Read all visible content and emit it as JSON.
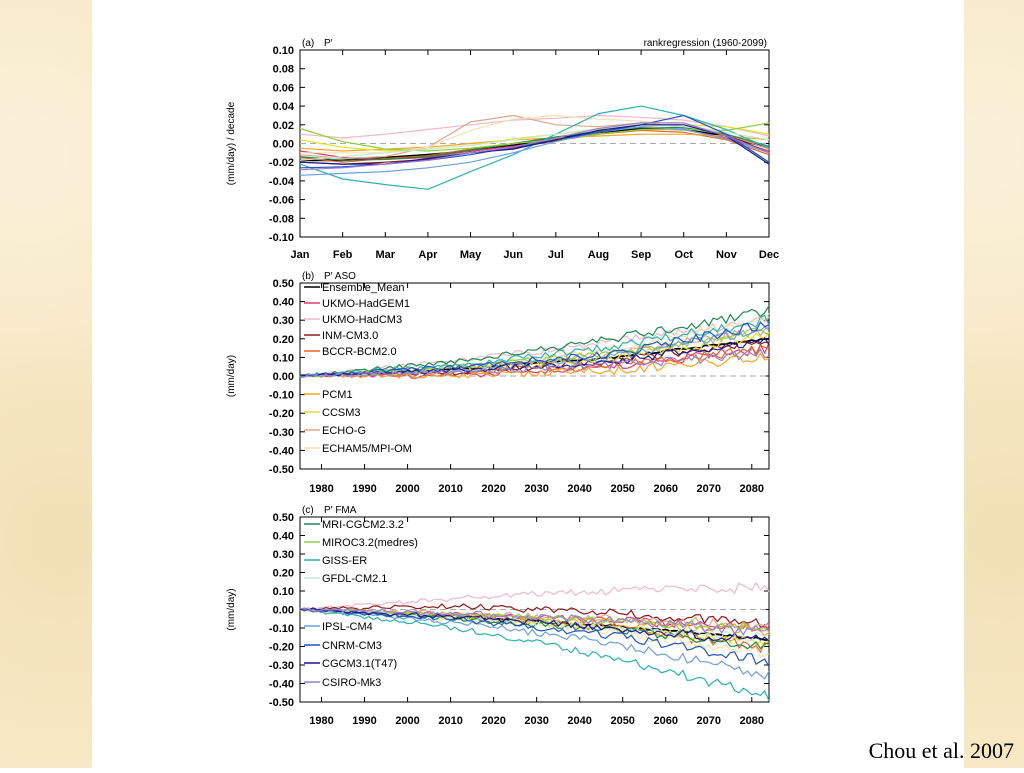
{
  "slide": {
    "credit": "Chou et al. 2007",
    "background_color": "#f8e9c6"
  },
  "chart_data": [
    {
      "type": "line",
      "panel_label": "(a)",
      "title": "P′",
      "title_right": "rankregression  (1960-2099)",
      "ylabel": "(mm/day) / decade",
      "categories": [
        "Jan",
        "Feb",
        "Mar",
        "Apr",
        "May",
        "Jun",
        "Jul",
        "Aug",
        "Sep",
        "Oct",
        "Nov",
        "Dec"
      ],
      "ylim": [
        -0.1,
        0.1
      ],
      "yticks": [
        "-0.10",
        "-0.08",
        "-0.06",
        "-0.04",
        "-0.02",
        "0.00",
        "0.02",
        "0.04",
        "0.06",
        "0.08",
        "0.10"
      ],
      "zero_line": "dashed",
      "series": [
        {
          "color": "#000000",
          "values": [
            -0.018,
            -0.018,
            -0.015,
            -0.012,
            -0.008,
            -0.002,
            0.006,
            0.012,
            0.016,
            0.015,
            0.008,
            -0.005
          ]
        },
        {
          "color": "#e33c74",
          "values": [
            -0.008,
            -0.015,
            -0.017,
            -0.015,
            -0.008,
            -0.003,
            0.004,
            0.012,
            0.018,
            0.015,
            0.006,
            -0.008
          ]
        },
        {
          "color": "#f2b8c6",
          "values": [
            0.01,
            0.006,
            0.01,
            0.015,
            0.02,
            0.025,
            0.027,
            0.03,
            0.028,
            0.025,
            0.018,
            0.008
          ]
        },
        {
          "color": "#8b1a1a",
          "values": [
            -0.02,
            -0.022,
            -0.02,
            -0.017,
            -0.01,
            -0.005,
            0.003,
            0.01,
            0.015,
            0.018,
            0.01,
            -0.01
          ]
        },
        {
          "color": "#e8641e",
          "values": [
            -0.015,
            -0.02,
            -0.016,
            -0.013,
            -0.006,
            0.0,
            0.005,
            0.01,
            0.014,
            0.012,
            0.004,
            -0.012
          ]
        },
        {
          "color": "#f5a623",
          "values": [
            -0.005,
            -0.008,
            -0.006,
            -0.004,
            0.0,
            0.004,
            0.006,
            0.008,
            0.01,
            0.01,
            0.008,
            0.004
          ]
        },
        {
          "color": "#e8e020",
          "values": [
            0.004,
            -0.004,
            -0.008,
            -0.006,
            -0.002,
            0.005,
            0.01,
            0.015,
            0.018,
            0.02,
            0.018,
            0.01
          ]
        },
        {
          "color": "#d9a98a",
          "values": [
            -0.012,
            -0.016,
            -0.014,
            -0.004,
            0.023,
            0.03,
            0.02,
            0.018,
            0.022,
            0.018,
            0.01,
            -0.006
          ]
        },
        {
          "color": "#f3e3b0",
          "values": [
            -0.01,
            -0.01,
            -0.01,
            -0.004,
            0.014,
            0.026,
            0.03,
            0.026,
            0.024,
            0.02,
            0.012,
            0.004
          ]
        },
        {
          "color": "#1e8a50",
          "values": [
            -0.014,
            -0.018,
            -0.017,
            -0.014,
            -0.007,
            0.0,
            0.007,
            0.013,
            0.017,
            0.017,
            0.01,
            -0.003
          ]
        },
        {
          "color": "#8fcf3a",
          "values": [
            0.016,
            0.002,
            -0.006,
            -0.008,
            -0.005,
            0.0,
            0.004,
            0.01,
            0.015,
            0.015,
            0.014,
            0.022
          ]
        },
        {
          "color": "#2ab3b0",
          "values": [
            -0.022,
            -0.038,
            -0.044,
            -0.049,
            -0.03,
            -0.012,
            0.01,
            0.032,
            0.04,
            0.03,
            0.015,
            -0.005
          ]
        },
        {
          "color": "#c9e8d8",
          "values": [
            -0.018,
            -0.014,
            -0.01,
            -0.006,
            -0.002,
            0.004,
            0.01,
            0.016,
            0.02,
            0.018,
            0.012,
            0.004
          ]
        },
        {
          "color": "#6aa0e0",
          "values": [
            -0.034,
            -0.032,
            -0.03,
            -0.026,
            -0.02,
            -0.01,
            0.002,
            0.012,
            0.018,
            0.015,
            0.005,
            -0.01
          ]
        },
        {
          "color": "#2255c4",
          "values": [
            -0.026,
            -0.025,
            -0.022,
            -0.018,
            -0.012,
            -0.004,
            0.004,
            0.012,
            0.02,
            0.03,
            0.01,
            -0.02
          ]
        },
        {
          "color": "#1a1a90",
          "values": [
            -0.02,
            -0.022,
            -0.022,
            -0.016,
            -0.01,
            -0.006,
            0.004,
            0.014,
            0.02,
            0.02,
            0.008,
            -0.022
          ]
        },
        {
          "color": "#9a7fd0",
          "values": [
            -0.028,
            -0.026,
            -0.022,
            -0.018,
            -0.01,
            -0.004,
            0.006,
            0.016,
            0.022,
            0.022,
            0.008,
            -0.01
          ]
        }
      ]
    },
    {
      "type": "line",
      "panel_label": "(b)",
      "title": "P′  ASO",
      "ylabel": "(mm/day)",
      "x_start": 1975,
      "x_end": 2084,
      "xticks": [
        "1980",
        "1990",
        "2000",
        "2010",
        "2020",
        "2030",
        "2040",
        "2050",
        "2060",
        "2070",
        "2080"
      ],
      "ylim": [
        -0.5,
        0.5
      ],
      "yticks": [
        "-0.50",
        "-0.40",
        "-0.30",
        "-0.20",
        "-0.10",
        "0.00",
        "0.10",
        "0.20",
        "0.30",
        "0.40",
        "0.50"
      ],
      "zero_line": "dashed",
      "legend": [
        "Ensemble_Mean",
        "UKMO-HadGEM1",
        "UKMO-HadCM3",
        "INM-CM3.0",
        "BCCR-BCM2.0",
        "PCM1",
        "CCSM3",
        "ECHO-G",
        "ECHAM5/MPI-OM"
      ],
      "series": [
        {
          "name": "Ensemble_Mean",
          "color": "#000000",
          "values": [
            0.0,
            0.04,
            0.1,
            0.2
          ]
        },
        {
          "name": "UKMO-HadGEM1",
          "color": "#e33c74",
          "values": [
            0.0,
            0.0,
            0.05,
            0.15
          ]
        },
        {
          "name": "UKMO-HadCM3",
          "color": "#f2b8c6",
          "values": [
            0.0,
            0.08,
            0.18,
            0.3
          ]
        },
        {
          "name": "INM-CM3.0",
          "color": "#8b1a1a",
          "values": [
            0.0,
            0.02,
            0.08,
            0.2
          ]
        },
        {
          "name": "BCCR-BCM2.0",
          "color": "#e8641e",
          "values": [
            0.0,
            0.02,
            0.06,
            0.14
          ]
        },
        {
          "name": "PCM1",
          "color": "#f5a623",
          "values": [
            0.0,
            0.0,
            0.03,
            0.1
          ]
        },
        {
          "name": "CCSM3",
          "color": "#e8e020",
          "values": [
            0.0,
            0.03,
            0.1,
            0.22
          ]
        },
        {
          "name": "ECHO-G",
          "color": "#d9a98a",
          "values": [
            0.0,
            0.04,
            0.12,
            0.25
          ]
        },
        {
          "name": "ECHAM5/MPI-OM",
          "color": "#f3e3b0",
          "values": [
            0.0,
            0.05,
            0.14,
            0.32
          ]
        },
        {
          "color": "#1e8a50",
          "values": [
            0.0,
            0.08,
            0.2,
            0.35
          ]
        },
        {
          "color": "#8fcf3a",
          "values": [
            0.0,
            0.05,
            0.12,
            0.25
          ]
        },
        {
          "color": "#2ab3b0",
          "values": [
            0.0,
            0.06,
            0.16,
            0.3
          ]
        },
        {
          "color": "#6aa0e0",
          "values": [
            0.0,
            0.03,
            0.1,
            0.26
          ]
        },
        {
          "color": "#2255c4",
          "values": [
            0.0,
            0.05,
            0.12,
            0.28
          ]
        },
        {
          "color": "#1a1a90",
          "values": [
            0.0,
            0.03,
            0.08,
            0.18
          ]
        },
        {
          "color": "#9a7fd0",
          "values": [
            0.0,
            0.02,
            0.06,
            0.12
          ]
        }
      ]
    },
    {
      "type": "line",
      "panel_label": "(c)",
      "title": "P′  FMA",
      "ylabel": "(mm/day)",
      "x_start": 1975,
      "x_end": 2084,
      "xticks": [
        "1980",
        "1990",
        "2000",
        "2010",
        "2020",
        "2030",
        "2040",
        "2050",
        "2060",
        "2070",
        "2080"
      ],
      "ylim": [
        -0.5,
        0.5
      ],
      "yticks": [
        "-0.50",
        "-0.40",
        "-0.30",
        "-0.20",
        "-0.10",
        "0.00",
        "0.10",
        "0.20",
        "0.30",
        "0.40",
        "0.50"
      ],
      "zero_line": "dashed",
      "legend": [
        "MRI-CGCM2.3.2",
        "MIROC3.2(medres)",
        "GISS-ER",
        "GFDL-CM2.1",
        "IPSL-CM4",
        "CNRM-CM3",
        "CGCM3.1(T47)",
        "CSIRO-Mk3"
      ],
      "series": [
        {
          "color": "#000000",
          "values": [
            0.0,
            -0.04,
            -0.09,
            -0.16
          ]
        },
        {
          "color": "#f2b8c6",
          "values": [
            0.0,
            0.06,
            0.1,
            0.12
          ]
        },
        {
          "color": "#8b1a1a",
          "values": [
            0.0,
            0.02,
            -0.02,
            -0.08
          ]
        },
        {
          "color": "#e33c74",
          "values": [
            0.0,
            -0.03,
            -0.06,
            -0.1
          ]
        },
        {
          "color": "#e8641e",
          "values": [
            0.0,
            -0.04,
            -0.1,
            -0.21
          ]
        },
        {
          "color": "#f5a623",
          "values": [
            0.0,
            -0.03,
            -0.07,
            -0.12
          ]
        },
        {
          "color": "#e8e020",
          "values": [
            0.0,
            -0.04,
            -0.1,
            -0.18
          ]
        },
        {
          "color": "#d9a98a",
          "values": [
            0.0,
            -0.02,
            -0.05,
            -0.08
          ]
        },
        {
          "color": "#f3e3b0",
          "values": [
            0.0,
            -0.05,
            -0.12,
            -0.24
          ]
        },
        {
          "name": "MRI-CGCM2.3.2",
          "color": "#1e8a50",
          "values": [
            0.0,
            -0.05,
            -0.11,
            -0.2
          ]
        },
        {
          "name": "MIROC3.2(medres)",
          "color": "#8fcf3a",
          "values": [
            0.0,
            -0.03,
            -0.06,
            -0.1
          ]
        },
        {
          "name": "GISS-ER",
          "color": "#2ab3b0",
          "values": [
            0.0,
            -0.1,
            -0.26,
            -0.47
          ]
        },
        {
          "name": "GFDL-CM2.1",
          "color": "#c9e8d8",
          "values": [
            0.0,
            -0.04,
            -0.1,
            -0.15
          ]
        },
        {
          "name": "IPSL-CM4",
          "color": "#6aa0e0",
          "values": [
            0.0,
            -0.07,
            -0.18,
            -0.36
          ]
        },
        {
          "name": "CNRM-CM3",
          "color": "#2255c4",
          "values": [
            0.0,
            -0.05,
            -0.14,
            -0.28
          ]
        },
        {
          "name": "CGCM3.1(T47)",
          "color": "#1a1a90",
          "values": [
            0.0,
            -0.04,
            -0.1,
            -0.17
          ]
        },
        {
          "name": "CSIRO-Mk3",
          "color": "#9a7fd0",
          "values": [
            0.0,
            -0.02,
            -0.06,
            -0.12
          ]
        }
      ]
    }
  ]
}
